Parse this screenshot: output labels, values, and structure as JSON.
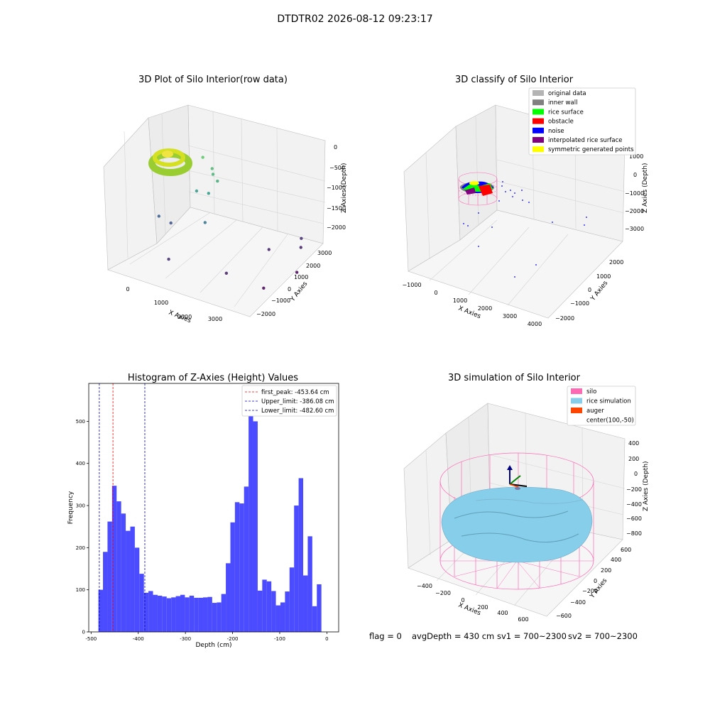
{
  "suptitle": "DTDTR02 2026-08-12 09:23:17",
  "footer": {
    "flag": "flag = 0",
    "avg": "avgDepth = 430 cm",
    "sv1": "sv1 = 700~2300",
    "sv2": "sv2 = 700~2300"
  },
  "colors": {
    "hist_bar": "#4b4bff",
    "first_peak_line": "#ff0000",
    "limit_line": "#0000cc",
    "pane": "#f2f2f2",
    "grid": "#d4d4d4",
    "silo_wire": "#ff69b4",
    "rice": "#87ceeb",
    "auger": "#ff4500"
  },
  "chart_data": [
    {
      "type": "scatter",
      "title": "3D Plot of Silo Interior(row data)",
      "projection": "3d",
      "xlabel": "X Axies",
      "ylabel": "Y Axies",
      "zlabel": "Z Axies (Depth)",
      "xticks": [
        "0",
        "1000",
        "2000",
        "3000"
      ],
      "yticks": [
        "−2000",
        "−1000",
        "0",
        "1000",
        "2000",
        "3000"
      ],
      "zticks": [
        "0",
        "−500",
        "−1000",
        "−1500",
        "−2000"
      ],
      "xlim": [
        -500,
        3500
      ],
      "ylim": [
        -2300,
        3200
      ],
      "zlim": [
        -2300,
        100
      ],
      "colormap": "viridis (by depth)",
      "cluster": {
        "x": [
          -100,
          650
        ],
        "y": [
          1800,
          2700
        ],
        "z": [
          -300,
          -450
        ],
        "description": "dense rice surface ring"
      },
      "points": [
        {
          "x": 600,
          "y": 1900,
          "z": -550
        },
        {
          "x": 900,
          "y": 1800,
          "z": -700
        },
        {
          "x": 1000,
          "y": 1600,
          "z": -750
        },
        {
          "x": 1200,
          "y": 1400,
          "z": -800
        },
        {
          "x": 800,
          "y": 900,
          "z": -1000
        },
        {
          "x": 1100,
          "y": 1000,
          "z": -1000
        },
        {
          "x": 0,
          "y": 200,
          "z": -1600
        },
        {
          "x": 300,
          "y": 300,
          "z": -1700
        },
        {
          "x": 1300,
          "y": 200,
          "z": -1400
        },
        {
          "x": 3000,
          "y": 2900,
          "z": -2000
        },
        {
          "x": 3100,
          "y": 2600,
          "z": -2100
        },
        {
          "x": 2500,
          "y": 1800,
          "z": -2100
        },
        {
          "x": 800,
          "y": -1200,
          "z": -2000
        },
        {
          "x": 3400,
          "y": 1500,
          "z": -2300
        },
        {
          "x": 2200,
          "y": -600,
          "z": -2100
        },
        {
          "x": 3100,
          "y": -200,
          "z": -2300
        }
      ]
    },
    {
      "type": "scatter",
      "title": "3D classify of Silo Interior",
      "projection": "3d",
      "xlabel": "X Axies",
      "ylabel": "Y Axies",
      "zlabel": "Z Axies (Depth)",
      "xticks": [
        "−1000",
        "0",
        "1000",
        "2000",
        "3000",
        "4000"
      ],
      "yticks": [
        "−2000",
        "−1000",
        "0",
        "1000",
        "2000"
      ],
      "zticks": [
        "1000",
        "0",
        "−1000",
        "−2000",
        "−3000"
      ],
      "legend": {
        "position": "upper right",
        "entries": [
          {
            "label": "original data",
            "color": "#b4b4b4"
          },
          {
            "label": "inner wall",
            "color": "#808080"
          },
          {
            "label": "rice surface",
            "color": "#00ff00"
          },
          {
            "label": "obstacle",
            "color": "#ff0000"
          },
          {
            "label": "noise",
            "color": "#0000ff"
          },
          {
            "label": "interpolated rice surface",
            "color": "#800080"
          },
          {
            "label": "symmetric generated points",
            "color": "#ffff00"
          }
        ]
      }
    },
    {
      "type": "bar",
      "title": "Histogram of Z-Axies (Height) Values",
      "xlabel": "Depth (cm)",
      "ylabel": "Frequency",
      "xlim": [
        -505,
        25
      ],
      "ylim": [
        0,
        590
      ],
      "xticks": [
        -500,
        -400,
        -300,
        -200,
        -100,
        0
      ],
      "yticks": [
        0,
        100,
        200,
        300,
        400,
        500
      ],
      "bin_start": -484.5,
      "bin_width": 9.65,
      "values": [
        100,
        190,
        262,
        347,
        310,
        281,
        240,
        250,
        200,
        138,
        93,
        97,
        88,
        86,
        84,
        80,
        82,
        85,
        88,
        82,
        86,
        81,
        81,
        82,
        83,
        69,
        70,
        90,
        163,
        260,
        308,
        305,
        345,
        553,
        500,
        98,
        124,
        120,
        97,
        63,
        70,
        96,
        153,
        300,
        365,
        134,
        227,
        61,
        113
      ],
      "vlines": [
        {
          "x": -453.64,
          "label": "first_peak: -453.64 cm",
          "color": "#ff0000"
        },
        {
          "x": -386.08,
          "label": "Upper_limit: -386.08 cm",
          "color": "#0000cc"
        },
        {
          "x": -482.6,
          "label": "Lower_limit: -482.60 cm",
          "color": "#0000cc"
        }
      ],
      "legend": "upper right"
    },
    {
      "type": "area",
      "title": "3D simulation of Silo Interior",
      "projection": "3d",
      "xlabel": "X Axies",
      "ylabel": "Y Axies",
      "zlabel": "Z Axies (Depth)",
      "xticks": [
        "−400",
        "−200",
        "0",
        "200",
        "400",
        "600"
      ],
      "yticks": [
        "−600",
        "−400",
        "−200",
        "0",
        "200",
        "400",
        "600"
      ],
      "zticks": [
        "400",
        "200",
        "0",
        "−200",
        "−400",
        "−600",
        "−800"
      ],
      "legend": {
        "position": "upper right",
        "entries": [
          {
            "label": "silo",
            "color": "#ff69b4"
          },
          {
            "label": "rice simulation",
            "color": "#87ceeb"
          },
          {
            "label": "auger",
            "color": "#ff4500"
          },
          {
            "label": "center(100,-50)",
            "color": ""
          }
        ]
      }
    }
  ]
}
